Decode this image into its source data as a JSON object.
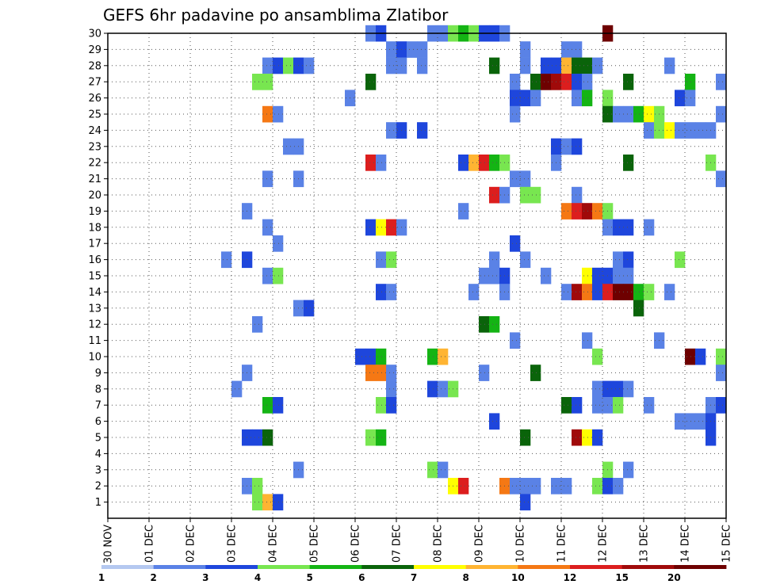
{
  "chart_data": {
    "type": "heatmap",
    "title": "GEFS 6hr padavine po ansamblima Zlatibor",
    "x_ticks": [
      "30 NOV",
      "01 DEC",
      "02 DEC",
      "03 DEC",
      "04 DEC",
      "05 DEC",
      "06 DEC",
      "07 DEC",
      "08 DEC",
      "09 DEC",
      "10 DEC",
      "11 DEC",
      "12 DEC",
      "13 DEC",
      "14 DEC",
      "15 DEC"
    ],
    "x_range_steps": [
      0,
      60
    ],
    "y_ticks": [
      1,
      2,
      3,
      4,
      5,
      6,
      7,
      8,
      9,
      10,
      11,
      12,
      13,
      14,
      15,
      16,
      17,
      18,
      19,
      20,
      21,
      22,
      23,
      24,
      25,
      26,
      27,
      28,
      29,
      30
    ],
    "y_range": [
      0,
      30
    ],
    "grid": true,
    "colorbar": {
      "labels": [
        "1",
        "2",
        "3",
        "4",
        "5",
        "6",
        "7",
        "8",
        "10",
        "12",
        "15",
        "20"
      ],
      "colors": [
        "#b4c8f0",
        "#5a82e6",
        "#1e46dc",
        "#78e650",
        "#14b414",
        "#0a640a",
        "#ffff00",
        "#ffb432",
        "#f57814",
        "#dc1e1e",
        "#a00a0a",
        "#6e0000"
      ]
    },
    "cells": [
      [
        25,
        30,
        1
      ],
      [
        26,
        30,
        2
      ],
      [
        31,
        30,
        1
      ],
      [
        32,
        30,
        1
      ],
      [
        33,
        30,
        3
      ],
      [
        34,
        30,
        4
      ],
      [
        35,
        30,
        3
      ],
      [
        36,
        30,
        2
      ],
      [
        37,
        30,
        2
      ],
      [
        38,
        30,
        1
      ],
      [
        48,
        30,
        11
      ],
      [
        27,
        29,
        1
      ],
      [
        28,
        29,
        2
      ],
      [
        29,
        29,
        1
      ],
      [
        30,
        29,
        1
      ],
      [
        40,
        29,
        1
      ],
      [
        44,
        29,
        1
      ],
      [
        45,
        29,
        1
      ],
      [
        15,
        28,
        1
      ],
      [
        16,
        28,
        2
      ],
      [
        17,
        28,
        3
      ],
      [
        18,
        28,
        2
      ],
      [
        19,
        28,
        1
      ],
      [
        27,
        28,
        1
      ],
      [
        28,
        28,
        1
      ],
      [
        30,
        28,
        1
      ],
      [
        37,
        28,
        5
      ],
      [
        40,
        28,
        1
      ],
      [
        42,
        28,
        2
      ],
      [
        43,
        28,
        2
      ],
      [
        44,
        28,
        7
      ],
      [
        45,
        28,
        5
      ],
      [
        46,
        28,
        5
      ],
      [
        47,
        28,
        1
      ],
      [
        54,
        28,
        1
      ],
      [
        14,
        27,
        3
      ],
      [
        15,
        27,
        3
      ],
      [
        25,
        27,
        5
      ],
      [
        39,
        27,
        1
      ],
      [
        41,
        27,
        5
      ],
      [
        42,
        27,
        11
      ],
      [
        43,
        27,
        10
      ],
      [
        44,
        27,
        9
      ],
      [
        45,
        27,
        2
      ],
      [
        46,
        27,
        1
      ],
      [
        50,
        27,
        5
      ],
      [
        56,
        27,
        4
      ],
      [
        59,
        27,
        1
      ],
      [
        23,
        26,
        1
      ],
      [
        39,
        26,
        2
      ],
      [
        40,
        26,
        2
      ],
      [
        41,
        26,
        1
      ],
      [
        45,
        26,
        1
      ],
      [
        46,
        26,
        4
      ],
      [
        48,
        26,
        3
      ],
      [
        55,
        26,
        2
      ],
      [
        56,
        26,
        1
      ],
      [
        15,
        25,
        8
      ],
      [
        16,
        25,
        1
      ],
      [
        39,
        25,
        1
      ],
      [
        48,
        25,
        5
      ],
      [
        49,
        25,
        1
      ],
      [
        50,
        25,
        1
      ],
      [
        51,
        25,
        4
      ],
      [
        52,
        25,
        6
      ],
      [
        53,
        25,
        3
      ],
      [
        59,
        25,
        1
      ],
      [
        27,
        24,
        1
      ],
      [
        28,
        24,
        2
      ],
      [
        30,
        24,
        2
      ],
      [
        52,
        24,
        1
      ],
      [
        53,
        24,
        3
      ],
      [
        54,
        24,
        6
      ],
      [
        55,
        24,
        1
      ],
      [
        56,
        24,
        1
      ],
      [
        57,
        24,
        1
      ],
      [
        58,
        24,
        1
      ],
      [
        17,
        23,
        1
      ],
      [
        18,
        23,
        1
      ],
      [
        43,
        23,
        2
      ],
      [
        44,
        23,
        1
      ],
      [
        45,
        23,
        2
      ],
      [
        25,
        22,
        9
      ],
      [
        26,
        22,
        1
      ],
      [
        34,
        22,
        2
      ],
      [
        35,
        22,
        7
      ],
      [
        36,
        22,
        9
      ],
      [
        37,
        22,
        4
      ],
      [
        38,
        22,
        3
      ],
      [
        43,
        22,
        1
      ],
      [
        50,
        22,
        5
      ],
      [
        58,
        22,
        3
      ],
      [
        15,
        21,
        1
      ],
      [
        18,
        21,
        1
      ],
      [
        39,
        21,
        1
      ],
      [
        40,
        21,
        1
      ],
      [
        59,
        21,
        1
      ],
      [
        37,
        20,
        9
      ],
      [
        38,
        20,
        1
      ],
      [
        40,
        20,
        3
      ],
      [
        41,
        20,
        3
      ],
      [
        45,
        20,
        1
      ],
      [
        13,
        19,
        1
      ],
      [
        34,
        19,
        1
      ],
      [
        44,
        19,
        8
      ],
      [
        45,
        19,
        9
      ],
      [
        46,
        19,
        10
      ],
      [
        47,
        19,
        8
      ],
      [
        48,
        19,
        3
      ],
      [
        15,
        18,
        1
      ],
      [
        25,
        18,
        2
      ],
      [
        26,
        18,
        6
      ],
      [
        27,
        18,
        9
      ],
      [
        28,
        18,
        1
      ],
      [
        48,
        18,
        1
      ],
      [
        49,
        18,
        2
      ],
      [
        50,
        18,
        2
      ],
      [
        52,
        18,
        1
      ],
      [
        16,
        17,
        1
      ],
      [
        39,
        17,
        2
      ],
      [
        11,
        16,
        1
      ],
      [
        13,
        16,
        2
      ],
      [
        26,
        16,
        1
      ],
      [
        27,
        16,
        3
      ],
      [
        37,
        16,
        1
      ],
      [
        40,
        16,
        1
      ],
      [
        49,
        16,
        1
      ],
      [
        50,
        16,
        2
      ],
      [
        55,
        16,
        3
      ],
      [
        15,
        15,
        1
      ],
      [
        16,
        15,
        3
      ],
      [
        36,
        15,
        1
      ],
      [
        37,
        15,
        1
      ],
      [
        38,
        15,
        2
      ],
      [
        42,
        15,
        1
      ],
      [
        46,
        15,
        6
      ],
      [
        47,
        15,
        2
      ],
      [
        48,
        15,
        2
      ],
      [
        49,
        15,
        1
      ],
      [
        50,
        15,
        1
      ],
      [
        26,
        14,
        2
      ],
      [
        27,
        14,
        1
      ],
      [
        35,
        14,
        1
      ],
      [
        38,
        14,
        1
      ],
      [
        44,
        14,
        1
      ],
      [
        45,
        14,
        10
      ],
      [
        46,
        14,
        8
      ],
      [
        47,
        14,
        2
      ],
      [
        48,
        14,
        9
      ],
      [
        49,
        14,
        11
      ],
      [
        50,
        14,
        11
      ],
      [
        51,
        14,
        4
      ],
      [
        52,
        14,
        3
      ],
      [
        54,
        14,
        1
      ],
      [
        18,
        13,
        1
      ],
      [
        19,
        13,
        2
      ],
      [
        51,
        13,
        5
      ],
      [
        14,
        12,
        1
      ],
      [
        36,
        12,
        5
      ],
      [
        37,
        12,
        4
      ],
      [
        39,
        11,
        1
      ],
      [
        46,
        11,
        1
      ],
      [
        53,
        11,
        1
      ],
      [
        24,
        10,
        2
      ],
      [
        25,
        10,
        2
      ],
      [
        26,
        10,
        4
      ],
      [
        31,
        10,
        4
      ],
      [
        32,
        10,
        7
      ],
      [
        47,
        10,
        3
      ],
      [
        56,
        10,
        11
      ],
      [
        57,
        10,
        2
      ],
      [
        59,
        10,
        3
      ],
      [
        13,
        9,
        1
      ],
      [
        25,
        9,
        8
      ],
      [
        26,
        9,
        8
      ],
      [
        27,
        9,
        1
      ],
      [
        36,
        9,
        1
      ],
      [
        41,
        9,
        5
      ],
      [
        59,
        9,
        1
      ],
      [
        12,
        8,
        1
      ],
      [
        27,
        8,
        1
      ],
      [
        31,
        8,
        2
      ],
      [
        32,
        8,
        1
      ],
      [
        33,
        8,
        3
      ],
      [
        47,
        8,
        1
      ],
      [
        48,
        8,
        2
      ],
      [
        49,
        8,
        2
      ],
      [
        50,
        8,
        1
      ],
      [
        15,
        7,
        4
      ],
      [
        16,
        7,
        2
      ],
      [
        26,
        7,
        3
      ],
      [
        27,
        7,
        2
      ],
      [
        44,
        7,
        5
      ],
      [
        45,
        7,
        2
      ],
      [
        47,
        7,
        1
      ],
      [
        48,
        7,
        1
      ],
      [
        49,
        7,
        3
      ],
      [
        52,
        7,
        1
      ],
      [
        58,
        7,
        1
      ],
      [
        59,
        7,
        2
      ],
      [
        37,
        6,
        2
      ],
      [
        55,
        6,
        1
      ],
      [
        56,
        6,
        1
      ],
      [
        57,
        6,
        1
      ],
      [
        58,
        6,
        2
      ],
      [
        13,
        5,
        2
      ],
      [
        14,
        5,
        2
      ],
      [
        15,
        5,
        5
      ],
      [
        25,
        5,
        3
      ],
      [
        26,
        5,
        4
      ],
      [
        40,
        5,
        5
      ],
      [
        45,
        5,
        10
      ],
      [
        46,
        5,
        6
      ],
      [
        47,
        5,
        2
      ],
      [
        58,
        5,
        2
      ],
      [
        18,
        3,
        1
      ],
      [
        31,
        3,
        3
      ],
      [
        32,
        3,
        1
      ],
      [
        48,
        3,
        3
      ],
      [
        50,
        3,
        1
      ],
      [
        13,
        2,
        1
      ],
      [
        14,
        2,
        3
      ],
      [
        33,
        2,
        6
      ],
      [
        34,
        2,
        9
      ],
      [
        38,
        2,
        8
      ],
      [
        39,
        2,
        1
      ],
      [
        40,
        2,
        1
      ],
      [
        41,
        2,
        1
      ],
      [
        43,
        2,
        1
      ],
      [
        44,
        2,
        1
      ],
      [
        47,
        2,
        3
      ],
      [
        48,
        2,
        2
      ],
      [
        49,
        2,
        1
      ],
      [
        14,
        1,
        3
      ],
      [
        15,
        1,
        7
      ],
      [
        16,
        1,
        2
      ],
      [
        40,
        1,
        2
      ]
    ]
  }
}
